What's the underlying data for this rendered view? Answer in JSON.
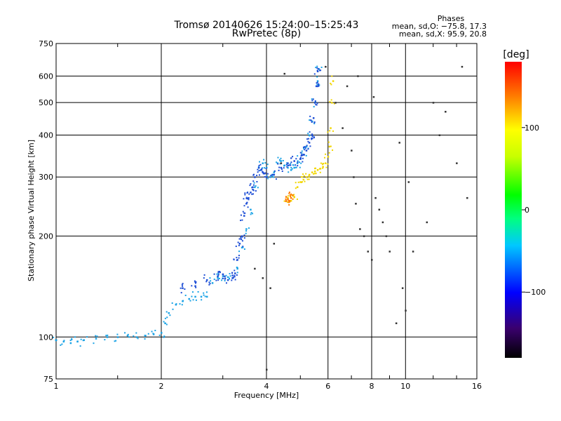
{
  "chart_data": {
    "type": "scatter",
    "title": "Tromsø 20140626 15:24:00–15:25:43",
    "subtitle": "RwPretec (8p)",
    "xlabel": "Frequency [MHz]",
    "ylabel": "Stationary phase Virtual Height [km]",
    "x_scale": "log",
    "y_scale": "log",
    "xlim": [
      1,
      16
    ],
    "ylim": [
      75,
      750
    ],
    "x_ticks": [
      1,
      2,
      4,
      6,
      8,
      10,
      16
    ],
    "y_ticks": [
      75,
      100,
      200,
      300,
      400,
      500,
      600,
      750
    ],
    "grid": true,
    "phase_info": {
      "title": "Phases",
      "line_o": "mean, sd,O: −75.8, 17.3",
      "line_x": "mean, sd,X:  95.9, 20.8"
    },
    "colorbar": {
      "label": "[deg]",
      "range": [
        -180,
        180
      ],
      "ticks": [
        100,
        0,
        -100
      ],
      "colors": [
        "#000000",
        "#3a006e",
        "#0000ff",
        "#00c8ff",
        "#00ff80",
        "#00ff00",
        "#c8ff00",
        "#ffff00",
        "#ff8000",
        "#ff0000"
      ]
    },
    "series": [
      {
        "trace": "o-mode",
        "phase_deg": -90,
        "color": "#1aa3e6",
        "x": [
          1.0,
          1.05,
          1.1,
          1.15,
          1.2,
          1.3,
          1.4,
          1.5,
          1.6,
          1.7,
          1.8,
          1.9,
          2.0,
          2.05,
          2.1,
          2.2,
          2.3,
          2.4,
          2.5,
          2.6,
          2.7,
          2.8,
          2.9,
          3.0,
          3.1,
          3.2,
          3.3,
          3.4,
          3.5,
          3.6,
          3.7,
          3.8,
          3.9,
          4.0,
          4.1,
          4.2,
          4.3,
          4.4,
          4.5,
          4.6,
          4.7,
          4.8,
          4.9,
          5.0,
          5.1,
          5.2,
          5.3,
          5.4,
          5.5,
          5.6,
          5.65
        ],
        "y": [
          98,
          97,
          96,
          97,
          98,
          99,
          100,
          100,
          101,
          100,
          101,
          102,
          103,
          110,
          118,
          125,
          128,
          130,
          132,
          132,
          132,
          145,
          150,
          152,
          151,
          150,
          160,
          185,
          210,
          240,
          280,
          320,
          330,
          320,
          300,
          310,
          330,
          335,
          325,
          320,
          315,
          320,
          330,
          340,
          350,
          370,
          400,
          440,
          500,
          580,
          630
        ]
      },
      {
        "trace": "o-mode-dense",
        "phase_deg": -110,
        "color": "#1f4fd6",
        "x": [
          2.3,
          2.5,
          2.7,
          2.9,
          3.0,
          3.1,
          3.2,
          3.25,
          3.3,
          3.35,
          3.4,
          3.45,
          3.5,
          3.55,
          3.6,
          3.65,
          3.7,
          3.8,
          3.9,
          4.0,
          4.2,
          4.4,
          4.6,
          4.8,
          5.0,
          5.1,
          5.2,
          5.3,
          5.4,
          5.45,
          5.5,
          5.55,
          5.6
        ],
        "y": [
          140,
          142,
          148,
          152,
          154,
          148,
          150,
          155,
          170,
          190,
          200,
          230,
          250,
          260,
          270,
          280,
          300,
          320,
          310,
          300,
          305,
          320,
          330,
          335,
          340,
          350,
          360,
          380,
          400,
          450,
          500,
          560,
          620
        ]
      },
      {
        "trace": "x-mode",
        "phase_deg": 95,
        "color": "#f2d600",
        "x": [
          4.6,
          4.7,
          4.8,
          4.9,
          5.0,
          5.1,
          5.2,
          5.3,
          5.4,
          5.5,
          5.6,
          5.7,
          5.8,
          5.9,
          6.0,
          6.05,
          6.1,
          6.15,
          6.2
        ],
        "y": [
          260,
          255,
          262,
          280,
          290,
          295,
          300,
          305,
          310,
          312,
          315,
          318,
          322,
          330,
          345,
          370,
          420,
          500,
          580
        ]
      },
      {
        "trace": "x-mode-low",
        "phase_deg": 150,
        "color": "#ff7a00",
        "x": [
          4.55,
          4.6,
          4.65,
          4.7,
          4.75
        ],
        "y": [
          262,
          258,
          255,
          260,
          265
        ]
      },
      {
        "trace": "scattered",
        "phase_deg": 0,
        "color": "#333333",
        "x": [
          4.4,
          4.5,
          5.9,
          6.3,
          6.6,
          7.0,
          7.1,
          7.2,
          7.4,
          7.6,
          7.8,
          8.0,
          8.2,
          8.4,
          8.6,
          8.8,
          9.0,
          9.4,
          9.8,
          10.0,
          10.5,
          11.5,
          12.0,
          13.0,
          14.0,
          15.0,
          3.7,
          3.9,
          4.0,
          4.2,
          6.8,
          7.3,
          8.1,
          9.6,
          10.2,
          12.5,
          14.5,
          4.1
        ],
        "y": [
          330,
          610,
          640,
          500,
          420,
          360,
          300,
          250,
          210,
          200,
          180,
          170,
          260,
          240,
          220,
          200,
          180,
          110,
          140,
          120,
          180,
          220,
          500,
          470,
          330,
          260,
          160,
          150,
          80,
          190,
          560,
          600,
          520,
          380,
          290,
          400,
          640,
          140
        ]
      }
    ]
  }
}
